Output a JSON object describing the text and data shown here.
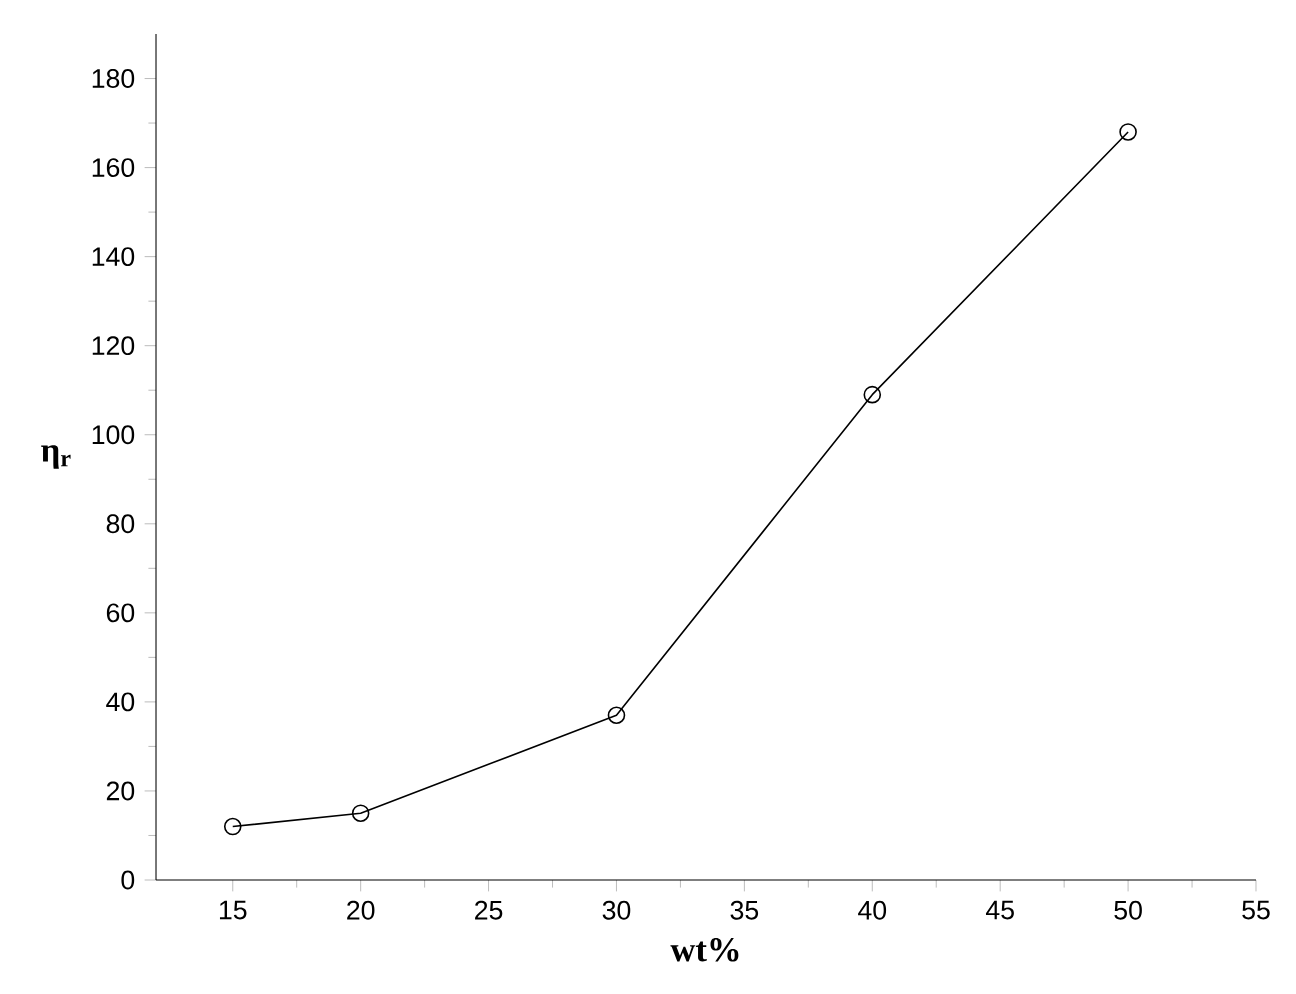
{
  "chart_data": {
    "type": "line",
    "xlabel": "wt%",
    "ylabel": "η$_{r}$",
    "x": [
      15,
      20,
      30,
      40,
      50
    ],
    "series": [
      {
        "color": "#000000",
        "values": [
          12,
          15,
          37,
          109,
          168
        ]
      }
    ],
    "xlim": [
      12,
      55
    ],
    "ylim": [
      0,
      190
    ],
    "xticks": [
      15,
      20,
      25,
      30,
      35,
      40,
      45,
      50,
      55
    ],
    "yticks": [
      0,
      20,
      40,
      60,
      80,
      100,
      120,
      140,
      160,
      180
    ],
    "marker": "circle",
    "line_style": "solid",
    "grid": false
  }
}
